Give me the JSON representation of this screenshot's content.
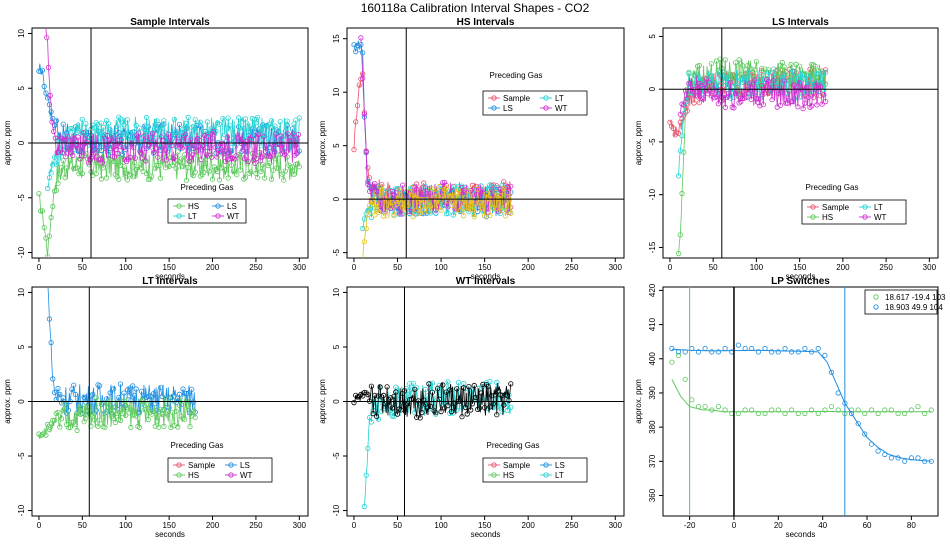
{
  "figure": {
    "title": "160118a   Calibration Interval Shapes - CO2"
  },
  "colors": {
    "Sample": "#e8536b",
    "HS": "#5cc95c",
    "LS": "#1f8fe0",
    "LT": "#27d3d3",
    "WT": "#d02fd0",
    "Yellow": "#e6c31e",
    "Black": "#000000",
    "Axis": "#000000"
  },
  "chart_data": [
    {
      "id": "sample",
      "type": "line",
      "title": "Sample Intervals",
      "xlabel": "seconds",
      "ylabel": "approx. ppm",
      "xlim": [
        -8,
        310
      ],
      "ylim": [
        -10.5,
        10.5
      ],
      "xticks": [
        0,
        50,
        100,
        150,
        200,
        250,
        300
      ],
      "yticks": [
        -10,
        -5,
        0,
        5,
        10
      ],
      "ytick_labels": [
        "-10",
        "-5",
        "0",
        "5",
        "10"
      ],
      "hline": 0,
      "vline": 60,
      "legend": {
        "title": "Preceding Gas",
        "position": "bottom-center",
        "entries": [
          "HS",
          "LS",
          "LT",
          "WT"
        ]
      },
      "series": [
        {
          "name": "HS",
          "color_key": "HS",
          "x": [
            0,
            5,
            10,
            15,
            20,
            30,
            40,
            60,
            100,
            150,
            200,
            250,
            300
          ],
          "y": [
            -5,
            -7,
            -10,
            -6,
            -3,
            -2,
            -2,
            -2,
            -2,
            -2,
            -2,
            -2,
            -2
          ]
        },
        {
          "name": "LS",
          "color_key": "LS",
          "x": [
            0,
            5,
            10,
            15,
            20,
            30,
            60,
            100,
            150,
            200,
            250,
            300
          ],
          "y": [
            7,
            6,
            4,
            2,
            1,
            0.5,
            0.2,
            0.3,
            0.4,
            0.3,
            0.4,
            0.3
          ]
        },
        {
          "name": "LT",
          "color_key": "LT",
          "x": [
            10,
            15,
            20,
            30,
            60,
            100,
            150,
            200,
            250,
            300
          ],
          "y": [
            -4,
            -2,
            -1,
            0.5,
            1,
            1,
            1,
            1,
            1,
            1
          ]
        },
        {
          "name": "WT",
          "color_key": "WT",
          "x": [
            5,
            10,
            13,
            16,
            20,
            30,
            60,
            100,
            150,
            200,
            250,
            300
          ],
          "y": [
            12,
            9,
            4,
            1,
            0,
            0,
            -0.5,
            -0.3,
            -0.5,
            -0.3,
            -0.5,
            -0.5
          ]
        }
      ]
    },
    {
      "id": "hs",
      "type": "line",
      "title": "HS Intervals",
      "xlabel": "seconds",
      "ylabel": "approx. ppm",
      "xlim": [
        -8,
        310
      ],
      "ylim": [
        -5.5,
        16
      ],
      "xticks": [
        0,
        50,
        100,
        150,
        200,
        250,
        300
      ],
      "yticks": [
        -5,
        0,
        5,
        10,
        15
      ],
      "ytick_labels": [
        "-5",
        "0",
        "5",
        "10",
        "15"
      ],
      "hline": 0,
      "vline": 60,
      "legend": {
        "title": "Preceding Gas",
        "position": "top-center",
        "entries": [
          "Sample",
          "LT",
          "LS",
          "WT"
        ]
      },
      "series": [
        {
          "name": "Sample",
          "color_key": "Sample",
          "x": [
            0,
            5,
            10,
            15,
            20,
            30,
            60,
            100,
            150,
            180
          ],
          "y": [
            5,
            10,
            12,
            3,
            1,
            0.5,
            0.2,
            0.3,
            0.4,
            0.3
          ]
        },
        {
          "name": "LS",
          "color_key": "LS",
          "x": [
            0,
            5,
            10,
            12,
            15,
            20,
            30,
            60,
            100,
            150,
            180
          ],
          "y": [
            14,
            14.5,
            14,
            8,
            2,
            0.5,
            0,
            -0.2,
            0,
            -0.3,
            0
          ]
        },
        {
          "name": "LT",
          "color_key": "LT",
          "x": [
            10,
            15,
            20,
            30,
            60,
            100,
            150,
            180
          ],
          "y": [
            -3,
            -1,
            -0.5,
            -0.3,
            0,
            -0.2,
            0,
            0
          ]
        },
        {
          "name": "WT",
          "color_key": "WT",
          "x": [
            8,
            12,
            15,
            20,
            30,
            60,
            100,
            150,
            180
          ],
          "y": [
            15,
            8,
            2,
            0.5,
            0,
            0,
            0.2,
            0,
            0
          ]
        },
        {
          "name": "",
          "color_key": "Yellow",
          "x": [
            10,
            13,
            16,
            20,
            30,
            60,
            100,
            150,
            180
          ],
          "y": [
            -5.5,
            -3,
            -1,
            -0.5,
            -0.2,
            -0.3,
            -0.2,
            -0.3,
            -0.2
          ]
        }
      ]
    },
    {
      "id": "ls",
      "type": "line",
      "title": "LS Intervals",
      "xlabel": "seconds",
      "ylabel": "approx. ppm",
      "xlim": [
        -8,
        310
      ],
      "ylim": [
        -16,
        5.8
      ],
      "xticks": [
        0,
        50,
        100,
        150,
        200,
        250,
        300
      ],
      "yticks": [
        -15,
        -10,
        -5,
        0,
        5
      ],
      "ytick_labels": [
        "-15",
        "-10",
        "-5",
        "0",
        "5"
      ],
      "hline": 0,
      "vline": 60,
      "legend": {
        "title": "Preceding Gas",
        "position": "bottom-center",
        "entries": [
          "Sample",
          "LT",
          "HS",
          "WT"
        ]
      },
      "series": [
        {
          "name": "Sample",
          "color_key": "Sample",
          "x": [
            0,
            5,
            10,
            15,
            20,
            30,
            60,
            100,
            150,
            180
          ],
          "y": [
            -3,
            -4,
            -4,
            -3,
            -1,
            0,
            0.5,
            0.5,
            0.5,
            0.5
          ]
        },
        {
          "name": "HS",
          "color_key": "HS",
          "x": [
            10,
            12,
            14,
            16,
            18,
            20,
            30,
            60,
            100,
            150,
            180
          ],
          "y": [
            -16,
            -14,
            -10,
            -6,
            -2,
            0,
            1,
            1.5,
            1.5,
            1,
            1
          ]
        },
        {
          "name": "LT",
          "color_key": "LT",
          "x": [
            10,
            14,
            18,
            20,
            30,
            60,
            100,
            150,
            180
          ],
          "y": [
            -8,
            -4,
            -1,
            0,
            0.5,
            0.5,
            0.5,
            0.5,
            0.5
          ]
        },
        {
          "name": "WT",
          "color_key": "WT",
          "x": [
            12,
            16,
            20,
            30,
            60,
            100,
            150,
            180
          ],
          "y": [
            -2,
            -1,
            0,
            0,
            -0.5,
            -0.3,
            -0.5,
            -0.3
          ]
        }
      ]
    },
    {
      "id": "lt",
      "type": "line",
      "title": "LT Intervals",
      "xlabel": "seconds",
      "ylabel": "approx. ppm",
      "xlim": [
        -8,
        310
      ],
      "ylim": [
        -10.5,
        10.5
      ],
      "xticks": [
        0,
        50,
        100,
        150,
        200,
        250,
        300
      ],
      "yticks": [
        -10,
        -5,
        0,
        5,
        10
      ],
      "ytick_labels": [
        "-10",
        "-5",
        "0",
        "5",
        "10"
      ],
      "hline": 0,
      "vline": 58,
      "legend": {
        "title": "Preceding Gas",
        "position": "bottom-center",
        "entries": [
          "Sample",
          "LS",
          "HS",
          "WT"
        ]
      },
      "series": [
        {
          "name": "LS",
          "color_key": "LS",
          "x": [
            10,
            12,
            14,
            16,
            18,
            20,
            30,
            60,
            100,
            150,
            180
          ],
          "y": [
            11,
            8,
            5,
            2,
            1,
            0.5,
            0.3,
            0.2,
            0.3,
            0.2,
            0.2
          ]
        },
        {
          "name": "HS",
          "color_key": "HS",
          "x": [
            0,
            10,
            20,
            30,
            60,
            100,
            150,
            180
          ],
          "y": [
            -3,
            -2.5,
            -2,
            -1.5,
            -1,
            -1,
            -1,
            -1
          ]
        },
        {
          "name": "Sample",
          "color_key": "Sample",
          "x": [],
          "y": []
        },
        {
          "name": "WT",
          "color_key": "WT",
          "x": [],
          "y": []
        }
      ]
    },
    {
      "id": "wt",
      "type": "line",
      "title": "WT Intervals",
      "xlabel": "seconds",
      "ylabel": "approx. ppm",
      "xlim": [
        -8,
        310
      ],
      "ylim": [
        -10.5,
        10.5
      ],
      "xticks": [
        0,
        50,
        100,
        150,
        200,
        250,
        300
      ],
      "yticks": [
        -10,
        -5,
        0,
        5,
        10
      ],
      "ytick_labels": [
        "-10",
        "-5",
        "0",
        "5",
        "10"
      ],
      "hline": 0,
      "vline": 58,
      "legend": {
        "title": "Preceding Gas",
        "position": "bottom-center",
        "entries": [
          "Sample",
          "LS",
          "HS",
          "LT"
        ]
      },
      "series": [
        {
          "name": "LT",
          "color_key": "LT",
          "x": [
            12,
            14,
            16,
            18,
            20,
            25,
            30,
            60,
            100,
            150,
            180
          ],
          "y": [
            -10,
            -7,
            -4,
            -2,
            -1,
            -0.5,
            0,
            0.2,
            0.3,
            0.3,
            0.2
          ]
        },
        {
          "name": "",
          "color_key": "Black",
          "x": [
            0,
            10,
            20,
            30,
            60,
            100,
            150,
            180
          ],
          "y": [
            0,
            0.5,
            0,
            0.2,
            0,
            0.2,
            0,
            0.2
          ]
        },
        {
          "name": "Sample",
          "color_key": "Sample",
          "x": [],
          "y": []
        },
        {
          "name": "LS",
          "color_key": "LS",
          "x": [],
          "y": []
        },
        {
          "name": "HS",
          "color_key": "HS",
          "x": [],
          "y": []
        }
      ]
    },
    {
      "id": "lp",
      "type": "scatter",
      "title": "LP Switches",
      "xlabel": "seconds",
      "ylabel": "approx. ppm",
      "xlim": [
        -32,
        92
      ],
      "ylim": [
        354,
        421
      ],
      "xticks": [
        -20,
        0,
        20,
        40,
        60,
        80
      ],
      "yticks": [
        360,
        370,
        380,
        390,
        400,
        410,
        420
      ],
      "ytick_labels": [
        "360",
        "370",
        "380",
        "390",
        "400",
        "410",
        "420"
      ],
      "vlines": [
        {
          "x": -20,
          "color_key": "HS"
        },
        {
          "x": 0,
          "color_key": "Black"
        },
        {
          "x": 50,
          "color_key": "LS"
        }
      ],
      "legend": {
        "position": "top-right",
        "entries": [
          "18.617 -19.4 103",
          "18.903 49.9 104"
        ]
      },
      "series": [
        {
          "name": "18.617 -19.4 103",
          "color_key": "HS",
          "x": [
            -28,
            -25,
            -22,
            -19,
            -16,
            -13,
            -10,
            -7,
            -4,
            -1,
            2,
            5,
            8,
            11,
            14,
            17,
            20,
            23,
            26,
            29,
            32,
            35,
            38,
            41,
            44,
            47,
            50,
            53,
            56,
            59,
            62,
            65,
            68,
            71,
            74,
            77,
            80,
            83,
            86,
            89
          ],
          "y": [
            399,
            401,
            394,
            388,
            386,
            386,
            385,
            386,
            385,
            384,
            384,
            385,
            385,
            384,
            384,
            385,
            385,
            384,
            385,
            384,
            384,
            385,
            384,
            385,
            386,
            385,
            384,
            385,
            385,
            384,
            385,
            384,
            385,
            385,
            384,
            384,
            385,
            386,
            384,
            385
          ],
          "fit_x": [
            -28,
            -24,
            -20,
            -17,
            -14,
            -10,
            -5,
            0,
            10,
            20,
            30,
            40,
            50,
            60,
            70,
            80,
            89
          ],
          "fit_y": [
            394,
            389,
            386,
            385.5,
            385,
            385,
            384.5,
            384.5,
            384.5,
            384.5,
            384.5,
            384.6,
            384.5,
            384.5,
            384.5,
            384.5,
            384.5
          ]
        },
        {
          "name": "18.903 49.9 104",
          "color_key": "LS",
          "x": [
            -28,
            -25,
            -22,
            -19,
            -16,
            -13,
            -10,
            -7,
            -4,
            -1,
            2,
            5,
            8,
            11,
            14,
            17,
            20,
            23,
            26,
            29,
            32,
            35,
            38,
            41,
            44,
            47,
            50,
            53,
            56,
            59,
            62,
            65,
            68,
            71,
            74,
            77,
            80,
            83,
            86,
            89
          ],
          "y": [
            403,
            402,
            402,
            403,
            402,
            403,
            402,
            402,
            403,
            402,
            404,
            403,
            403,
            402,
            403,
            402,
            402,
            403,
            402,
            402,
            403,
            402,
            403,
            401,
            396,
            390,
            387,
            384,
            381,
            378,
            375,
            373,
            372,
            371,
            371,
            370,
            371,
            371,
            370,
            370
          ],
          "fit_x": [
            -28,
            -20,
            -10,
            0,
            10,
            20,
            30,
            38,
            42,
            46,
            50,
            55,
            60,
            65,
            70,
            75,
            80,
            85,
            89
          ],
          "fit_y": [
            402.8,
            402.5,
            402.3,
            402.4,
            402.5,
            402.3,
            402.2,
            402,
            399,
            393,
            387,
            382,
            377,
            374,
            372,
            371,
            370.5,
            370.2,
            370
          ]
        }
      ]
    }
  ]
}
